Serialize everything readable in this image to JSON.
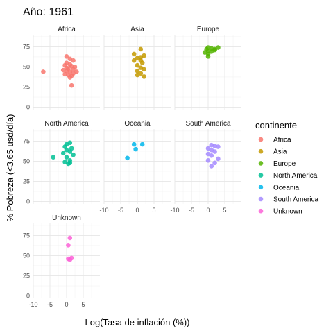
{
  "chart_data": {
    "type": "scatter",
    "title": "Año: 1961",
    "xlabel": "Log(Tasa de inflación (%))",
    "ylabel": "% Pobreza (<3.65 usd/día)",
    "xlim": [
      -10,
      10
    ],
    "ylim": [
      -3,
      90
    ],
    "x_ticks": [
      "-10",
      "-5",
      "0",
      "5"
    ],
    "y_ticks": [
      "0",
      "25",
      "50",
      "75"
    ],
    "x_tick_values": [
      -10,
      -5,
      0,
      5
    ],
    "y_tick_values": [
      0,
      25,
      50,
      75
    ],
    "grid": true,
    "legend_title": "continente",
    "legend_position": "right",
    "series": [
      {
        "name": "Africa",
        "color": "#F8766D",
        "points": [
          [
            -7,
            44
          ],
          [
            0,
            63
          ],
          [
            1,
            60
          ],
          [
            2,
            58
          ],
          [
            0,
            55
          ],
          [
            -0.5,
            52
          ],
          [
            1.5,
            51
          ],
          [
            2.5,
            50
          ],
          [
            0.5,
            48
          ],
          [
            -1,
            46
          ],
          [
            0,
            45
          ],
          [
            1,
            44
          ],
          [
            3,
            44
          ],
          [
            2,
            42
          ],
          [
            -0.5,
            41
          ],
          [
            0.5,
            40
          ],
          [
            1.5,
            39
          ],
          [
            1,
            37
          ],
          [
            1.5,
            27
          ],
          [
            0,
            49
          ],
          [
            1,
            53
          ],
          [
            2,
            47
          ]
        ]
      },
      {
        "name": "Asia",
        "color": "#C49A00",
        "points": [
          [
            1,
            72
          ],
          [
            -1,
            66
          ],
          [
            2,
            64
          ],
          [
            0,
            61
          ],
          [
            1,
            58
          ],
          [
            -1,
            58
          ],
          [
            1.5,
            55
          ],
          [
            0,
            52
          ],
          [
            1,
            49
          ],
          [
            2,
            47
          ],
          [
            0,
            45
          ],
          [
            1,
            42
          ],
          [
            0,
            40
          ],
          [
            2,
            38
          ],
          [
            1,
            62
          ]
        ]
      },
      {
        "name": "Europe",
        "color": "#53B400",
        "points": [
          [
            0,
            74
          ],
          [
            3,
            74
          ],
          [
            1,
            73
          ],
          [
            -0.5,
            72
          ],
          [
            2,
            71
          ],
          [
            0,
            70
          ],
          [
            1,
            69
          ],
          [
            -1,
            68
          ],
          [
            0,
            66
          ],
          [
            2,
            72
          ],
          [
            0,
            63
          ]
        ]
      },
      {
        "name": "North America",
        "color": "#00C094",
        "points": [
          [
            1,
            73
          ],
          [
            0,
            71
          ],
          [
            -0.5,
            68
          ],
          [
            1.5,
            66
          ],
          [
            0,
            64
          ],
          [
            1,
            62
          ],
          [
            -1,
            60
          ],
          [
            2,
            58
          ],
          [
            -4,
            55
          ],
          [
            0,
            55
          ],
          [
            1,
            51
          ],
          [
            -0.5,
            49
          ],
          [
            1,
            48
          ],
          [
            0.5,
            47
          ]
        ]
      },
      {
        "name": "Oceania",
        "color": "#00B6EB",
        "points": [
          [
            -1,
            71
          ],
          [
            1.5,
            71
          ],
          [
            -0.5,
            65
          ],
          [
            -3,
            54
          ]
        ]
      },
      {
        "name": "South America",
        "color": "#A58AFF",
        "points": [
          [
            1,
            70
          ],
          [
            2,
            69
          ],
          [
            3,
            68
          ],
          [
            0,
            66
          ],
          [
            1,
            64
          ],
          [
            2,
            62
          ],
          [
            0,
            59
          ],
          [
            1,
            57
          ],
          [
            3,
            53
          ],
          [
            0,
            51
          ],
          [
            2,
            48
          ],
          [
            1,
            44
          ]
        ]
      },
      {
        "name": "Unknown",
        "color": "#FB61D7",
        "points": [
          [
            1,
            72
          ],
          [
            0.5,
            63
          ],
          [
            1.5,
            47
          ],
          [
            0.5,
            46
          ],
          [
            1,
            45
          ]
        ]
      }
    ],
    "panels": [
      "Africa",
      "Asia",
      "Europe",
      "North America",
      "Oceania",
      "South America",
      "Unknown"
    ]
  }
}
